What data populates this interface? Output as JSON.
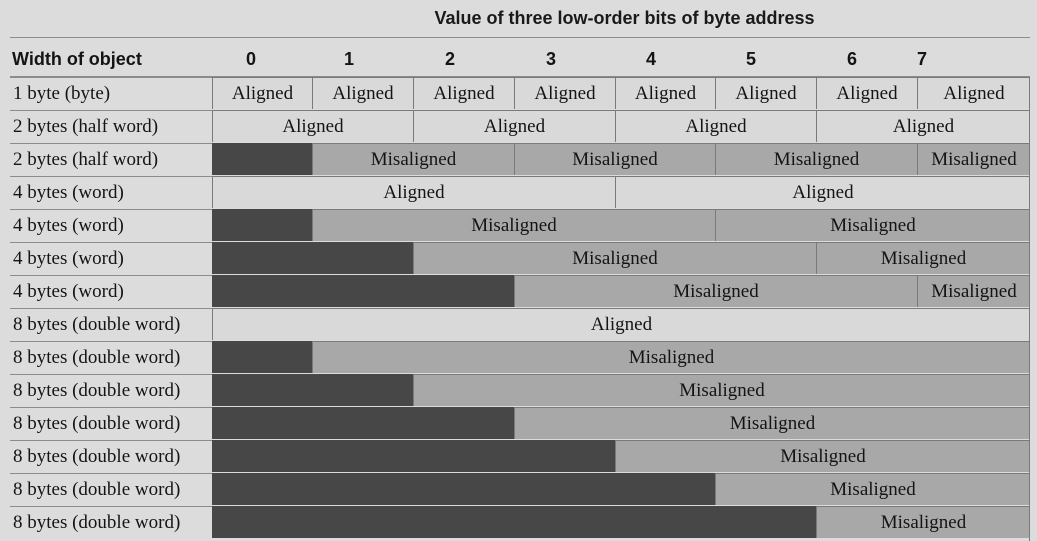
{
  "title": "Value of three low-order bits of byte address",
  "column_header": "Width of object",
  "offsets": [
    "0",
    "1",
    "2",
    "3",
    "4",
    "5",
    "6",
    "7"
  ],
  "legend_colors": {
    "aligned": "#d9d9d9",
    "misaligned": "#a8a8a8",
    "blocked": "#474747"
  },
  "rows": [
    {
      "label": "1 byte (byte)",
      "cells": [
        {
          "start": 0,
          "span": 1,
          "status": "aligned",
          "text": "Aligned"
        },
        {
          "start": 1,
          "span": 1,
          "status": "aligned",
          "text": "Aligned"
        },
        {
          "start": 2,
          "span": 1,
          "status": "aligned",
          "text": "Aligned"
        },
        {
          "start": 3,
          "span": 1,
          "status": "aligned",
          "text": "Aligned"
        },
        {
          "start": 4,
          "span": 1,
          "status": "aligned",
          "text": "Aligned"
        },
        {
          "start": 5,
          "span": 1,
          "status": "aligned",
          "text": "Aligned"
        },
        {
          "start": 6,
          "span": 1,
          "status": "aligned",
          "text": "Aligned"
        },
        {
          "start": 7,
          "span": 1,
          "status": "aligned",
          "text": "Aligned"
        }
      ]
    },
    {
      "label": "2 bytes (half word)",
      "cells": [
        {
          "start": 0,
          "span": 2,
          "status": "aligned",
          "text": "Aligned"
        },
        {
          "start": 2,
          "span": 2,
          "status": "aligned",
          "text": "Aligned"
        },
        {
          "start": 4,
          "span": 2,
          "status": "aligned",
          "text": "Aligned"
        },
        {
          "start": 6,
          "span": 2,
          "status": "aligned",
          "text": "Aligned"
        }
      ]
    },
    {
      "label": "2 bytes (half word)",
      "cells": [
        {
          "start": 0,
          "span": 1,
          "status": "blocked",
          "text": ""
        },
        {
          "start": 1,
          "span": 2,
          "status": "misaligned",
          "text": "Misaligned"
        },
        {
          "start": 3,
          "span": 2,
          "status": "misaligned",
          "text": "Misaligned"
        },
        {
          "start": 5,
          "span": 2,
          "status": "misaligned",
          "text": "Misaligned"
        },
        {
          "start": 7,
          "span": 1,
          "status": "misaligned",
          "text": "Misaligned"
        }
      ]
    },
    {
      "label": "4 bytes (word)",
      "cells": [
        {
          "start": 0,
          "span": 4,
          "status": "aligned",
          "text": "Aligned"
        },
        {
          "start": 4,
          "span": 4,
          "status": "aligned",
          "text": "Aligned"
        }
      ]
    },
    {
      "label": "4 bytes (word)",
      "cells": [
        {
          "start": 0,
          "span": 1,
          "status": "blocked",
          "text": ""
        },
        {
          "start": 1,
          "span": 4,
          "status": "misaligned",
          "text": "Misaligned"
        },
        {
          "start": 5,
          "span": 3,
          "status": "misaligned",
          "text": "Misaligned"
        }
      ]
    },
    {
      "label": "4 bytes (word)",
      "cells": [
        {
          "start": 0,
          "span": 2,
          "status": "blocked",
          "text": ""
        },
        {
          "start": 2,
          "span": 4,
          "status": "misaligned",
          "text": "Misaligned"
        },
        {
          "start": 6,
          "span": 2,
          "status": "misaligned",
          "text": "Misaligned"
        }
      ]
    },
    {
      "label": "4 bytes (word)",
      "cells": [
        {
          "start": 0,
          "span": 3,
          "status": "blocked",
          "text": ""
        },
        {
          "start": 3,
          "span": 4,
          "status": "misaligned",
          "text": "Misaligned"
        },
        {
          "start": 7,
          "span": 1,
          "status": "misaligned",
          "text": "Misaligned"
        }
      ]
    },
    {
      "label": "8 bytes (double word)",
      "cells": [
        {
          "start": 0,
          "span": 8,
          "status": "aligned",
          "text": "Aligned"
        }
      ]
    },
    {
      "label": "8 bytes (double word)",
      "cells": [
        {
          "start": 0,
          "span": 1,
          "status": "blocked",
          "text": ""
        },
        {
          "start": 1,
          "span": 7,
          "status": "misaligned",
          "text": "Misaligned"
        }
      ]
    },
    {
      "label": "8 bytes (double word)",
      "cells": [
        {
          "start": 0,
          "span": 2,
          "status": "blocked",
          "text": ""
        },
        {
          "start": 2,
          "span": 6,
          "status": "misaligned",
          "text": "Misaligned"
        }
      ]
    },
    {
      "label": "8 bytes (double word)",
      "cells": [
        {
          "start": 0,
          "span": 3,
          "status": "blocked",
          "text": ""
        },
        {
          "start": 3,
          "span": 5,
          "status": "misaligned",
          "text": "Misaligned"
        }
      ]
    },
    {
      "label": "8 bytes (double word)",
      "cells": [
        {
          "start": 0,
          "span": 4,
          "status": "blocked",
          "text": ""
        },
        {
          "start": 4,
          "span": 4,
          "status": "misaligned",
          "text": "Misaligned"
        }
      ]
    },
    {
      "label": "8 bytes (double word)",
      "cells": [
        {
          "start": 0,
          "span": 5,
          "status": "blocked",
          "text": ""
        },
        {
          "start": 5,
          "span": 3,
          "status": "misaligned",
          "text": "Misaligned"
        }
      ]
    },
    {
      "label": "8 bytes (double word)",
      "cells": [
        {
          "start": 0,
          "span": 6,
          "status": "blocked",
          "text": ""
        },
        {
          "start": 6,
          "span": 2,
          "status": "misaligned",
          "text": "Misaligned"
        }
      ]
    }
  ]
}
